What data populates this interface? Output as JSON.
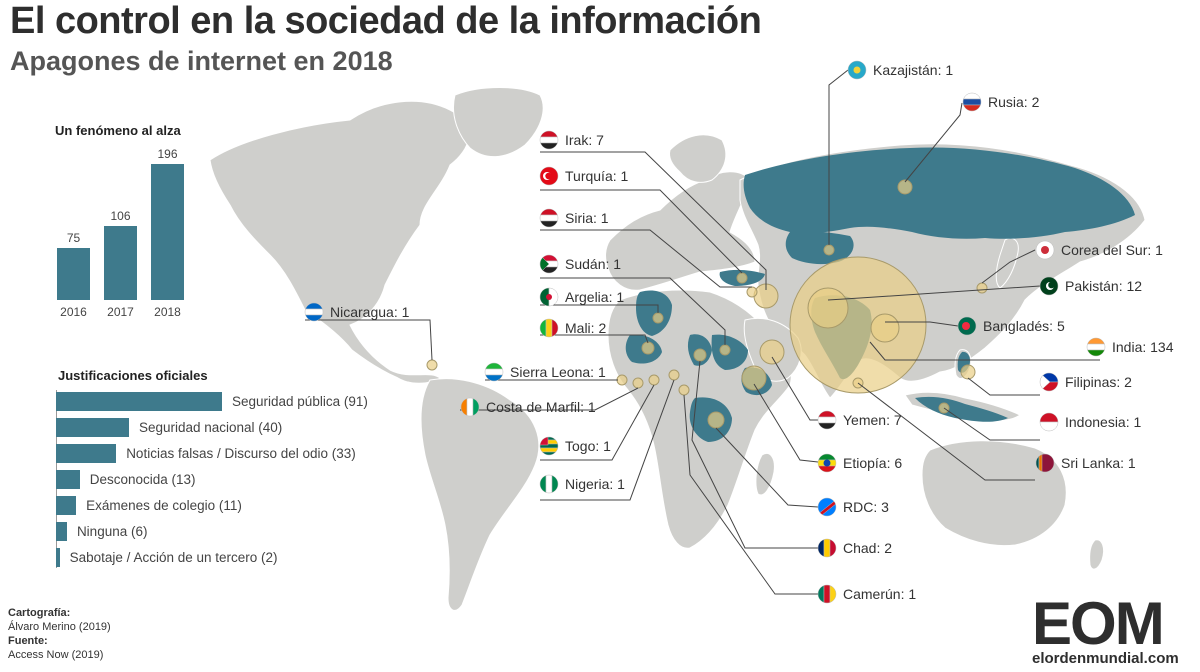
{
  "header": {
    "title": "El control en la sociedad de la información",
    "subtitle": "Apagones de internet en 2018"
  },
  "colors": {
    "land": "#cfcfcc",
    "highlight": "#3e7a8c",
    "bubble": "#e9cf86",
    "bar": "#3e7a8c"
  },
  "trend": {
    "title": "Un fenómeno al alza",
    "bars": [
      {
        "year": "2016",
        "value": 75
      },
      {
        "year": "2017",
        "value": 106
      },
      {
        "year": "2018",
        "value": 196
      }
    ]
  },
  "justifications": {
    "title": "Justificaciones oficiales",
    "items": [
      {
        "label": "Seguridad pública (91)",
        "value": 91
      },
      {
        "label": "Seguridad nacional (40)",
        "value": 40
      },
      {
        "label": "Noticias falsas / Discurso del odio (33)",
        "value": 33
      },
      {
        "label": "Desconocida (13)",
        "value": 13
      },
      {
        "label": "Exámenes de colegio (11)",
        "value": 11
      },
      {
        "label": "Ninguna (6)",
        "value": 6
      },
      {
        "label": "Sabotaje / Acción de un tercero (2)",
        "value": 2
      }
    ]
  },
  "countries": [
    {
      "label": "Kazajistán: 1",
      "value": 1,
      "flag": "kazakhstan-flag"
    },
    {
      "label": "Rusia: 2",
      "value": 2,
      "flag": "russia-flag"
    },
    {
      "label": "Irak: 7",
      "value": 7,
      "flag": "iraq-flag"
    },
    {
      "label": "Turquía: 1",
      "value": 1,
      "flag": "turkey-flag"
    },
    {
      "label": "Siria: 1",
      "value": 1,
      "flag": "syria-flag"
    },
    {
      "label": "Sudán: 1",
      "value": 1,
      "flag": "sudan-flag"
    },
    {
      "label": "Argelia: 1",
      "value": 1,
      "flag": "algeria-flag"
    },
    {
      "label": "Mali: 2",
      "value": 2,
      "flag": "mali-flag"
    },
    {
      "label": "Nicaragua: 1",
      "value": 1,
      "flag": "nicaragua-flag"
    },
    {
      "label": "Sierra Leona: 1",
      "value": 1,
      "flag": "sierra-leone-flag"
    },
    {
      "label": "Costa de Marfil: 1",
      "value": 1,
      "flag": "ivory-coast-flag"
    },
    {
      "label": "Togo: 1",
      "value": 1,
      "flag": "togo-flag"
    },
    {
      "label": "Nigeria: 1",
      "value": 1,
      "flag": "nigeria-flag"
    },
    {
      "label": "Yemen: 7",
      "value": 7,
      "flag": "yemen-flag"
    },
    {
      "label": "Etiopía: 6",
      "value": 6,
      "flag": "ethiopia-flag"
    },
    {
      "label": "RDC: 3",
      "value": 3,
      "flag": "drc-flag"
    },
    {
      "label": "Chad: 2",
      "value": 2,
      "flag": "chad-flag"
    },
    {
      "label": "Camerún: 1",
      "value": 1,
      "flag": "cameroon-flag"
    },
    {
      "label": "Corea del Sur: 1",
      "value": 1,
      "flag": "south-korea-flag"
    },
    {
      "label": "Pakistán: 12",
      "value": 12,
      "flag": "pakistan-flag"
    },
    {
      "label": "Bangladés: 5",
      "value": 5,
      "flag": "bangladesh-flag"
    },
    {
      "label": "India: 134",
      "value": 134,
      "flag": "india-flag"
    },
    {
      "label": "Filipinas: 2",
      "value": 2,
      "flag": "philippines-flag"
    },
    {
      "label": "Indonesia: 1",
      "value": 1,
      "flag": "indonesia-flag"
    },
    {
      "label": "Sri Lanka: 1",
      "value": 1,
      "flag": "sri-lanka-flag"
    }
  ],
  "credits": {
    "cartography_label": "Cartografía:",
    "cartography": "Álvaro Merino (2019)",
    "source_label": "Fuente:",
    "source": "Access Now (2019)"
  },
  "logo": {
    "mark": "EOM",
    "url": "elordenmundial.com"
  }
}
